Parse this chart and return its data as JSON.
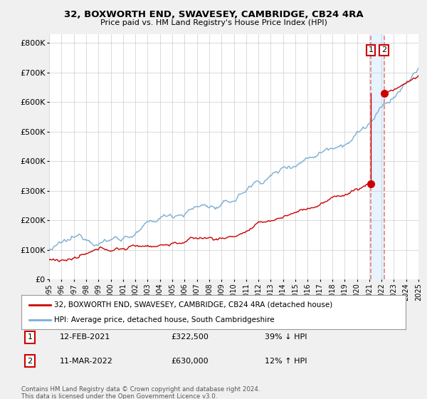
{
  "title": "32, BOXWORTH END, SWAVESEY, CAMBRIDGE, CB24 4RA",
  "subtitle": "Price paid vs. HM Land Registry's House Price Index (HPI)",
  "legend_label_red": "32, BOXWORTH END, SWAVESEY, CAMBRIDGE, CB24 4RA (detached house)",
  "legend_label_blue": "HPI: Average price, detached house, South Cambridgeshire",
  "transaction1_date": "12-FEB-2021",
  "transaction1_price": "£322,500",
  "transaction1_hpi": "39% ↓ HPI",
  "transaction2_date": "11-MAR-2022",
  "transaction2_price": "£630,000",
  "transaction2_hpi": "12% ↑ HPI",
  "footnote": "Contains HM Land Registry data © Crown copyright and database right 2024.\nThis data is licensed under the Open Government Licence v3.0.",
  "yticks": [
    0,
    100000,
    200000,
    300000,
    400000,
    500000,
    600000,
    700000,
    800000
  ],
  "ytick_labels": [
    "£0",
    "£100K",
    "£200K",
    "£300K",
    "£400K",
    "£500K",
    "£600K",
    "£700K",
    "£800K"
  ],
  "color_red": "#cc0000",
  "color_blue": "#7aafd4",
  "color_dashed": "#e08080",
  "shade_color": "#ddeeff",
  "bg_color": "#f0f0f0",
  "plot_bg": "#ffffff",
  "transaction1_year": 2021.12,
  "transaction1_value": 322500,
  "transaction2_year": 2022.21,
  "transaction2_value": 630000,
  "xmin": 1995,
  "xmax": 2025,
  "ylim_max": 830000
}
